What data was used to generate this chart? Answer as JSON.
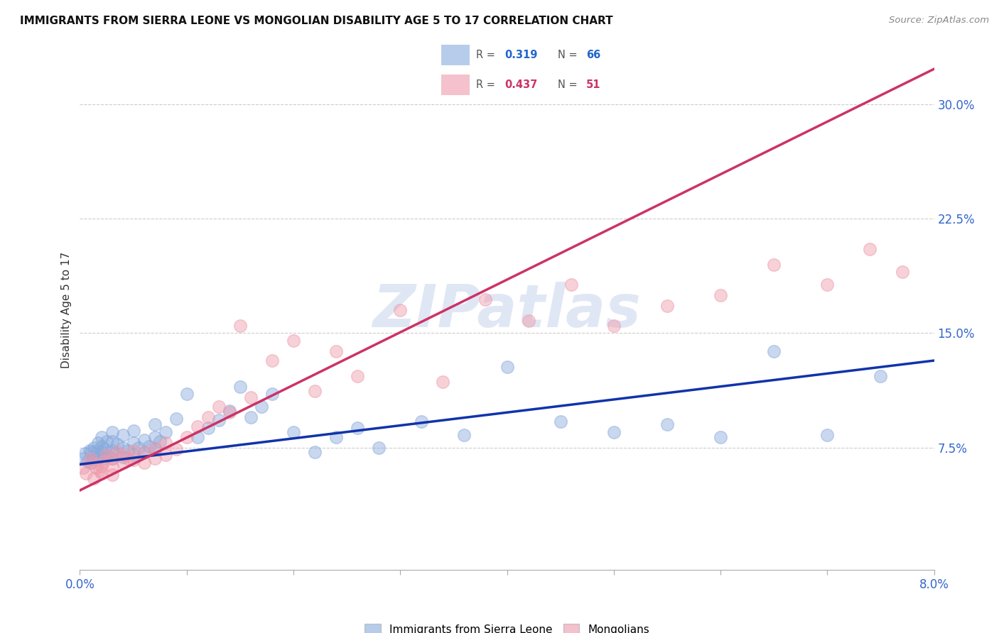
{
  "title": "IMMIGRANTS FROM SIERRA LEONE VS MONGOLIAN DISABILITY AGE 5 TO 17 CORRELATION CHART",
  "source": "Source: ZipAtlas.com",
  "ylabel": "Disability Age 5 to 17",
  "ytick_labels": [
    "7.5%",
    "15.0%",
    "22.5%",
    "30.0%"
  ],
  "ytick_values": [
    0.075,
    0.15,
    0.225,
    0.3
  ],
  "xlim": [
    0.0,
    0.08
  ],
  "ylim": [
    -0.005,
    0.335
  ],
  "color_blue": "#88aadd",
  "color_pink": "#ee99aa",
  "trendline_blue": "#1133aa",
  "trendline_pink": "#cc3366",
  "watermark": "ZIPatlas",
  "blue_slope": 0.85,
  "blue_intercept": 0.064,
  "pink_slope": 3.45,
  "pink_intercept": 0.047,
  "legend_r1_color": "#2266cc",
  "legend_n1_color": "#2266cc",
  "legend_r2_color": "#cc3366",
  "legend_n2_color": "#cc3366",
  "sierra_leone_x": [
    0.0003,
    0.0005,
    0.0007,
    0.0009,
    0.001,
    0.001,
    0.0012,
    0.0013,
    0.0015,
    0.0016,
    0.0017,
    0.0018,
    0.002,
    0.002,
    0.002,
    0.0022,
    0.0023,
    0.0025,
    0.0025,
    0.003,
    0.003,
    0.003,
    0.003,
    0.0033,
    0.0035,
    0.004,
    0.004,
    0.004,
    0.0045,
    0.005,
    0.005,
    0.005,
    0.0055,
    0.006,
    0.006,
    0.0065,
    0.007,
    0.007,
    0.007,
    0.0075,
    0.008,
    0.009,
    0.01,
    0.011,
    0.012,
    0.013,
    0.014,
    0.015,
    0.016,
    0.017,
    0.018,
    0.02,
    0.022,
    0.024,
    0.026,
    0.028,
    0.032,
    0.036,
    0.04,
    0.045,
    0.05,
    0.055,
    0.06,
    0.065,
    0.07,
    0.075
  ],
  "sierra_leone_y": [
    0.068,
    0.071,
    0.066,
    0.073,
    0.065,
    0.072,
    0.069,
    0.075,
    0.067,
    0.073,
    0.078,
    0.069,
    0.072,
    0.076,
    0.082,
    0.068,
    0.074,
    0.07,
    0.079,
    0.068,
    0.073,
    0.079,
    0.085,
    0.071,
    0.077,
    0.069,
    0.075,
    0.083,
    0.073,
    0.07,
    0.078,
    0.086,
    0.075,
    0.072,
    0.08,
    0.076,
    0.074,
    0.082,
    0.09,
    0.079,
    0.085,
    0.094,
    0.11,
    0.082,
    0.088,
    0.093,
    0.099,
    0.115,
    0.095,
    0.102,
    0.11,
    0.085,
    0.072,
    0.082,
    0.088,
    0.075,
    0.092,
    0.083,
    0.128,
    0.092,
    0.085,
    0.09,
    0.082,
    0.138,
    0.083,
    0.122
  ],
  "mongolian_x": [
    0.0003,
    0.0006,
    0.001,
    0.001,
    0.0013,
    0.0015,
    0.0018,
    0.002,
    0.002,
    0.0022,
    0.0025,
    0.003,
    0.003,
    0.003,
    0.0035,
    0.004,
    0.004,
    0.0045,
    0.005,
    0.005,
    0.006,
    0.006,
    0.007,
    0.007,
    0.008,
    0.008,
    0.009,
    0.01,
    0.011,
    0.012,
    0.013,
    0.014,
    0.015,
    0.016,
    0.018,
    0.02,
    0.022,
    0.024,
    0.026,
    0.03,
    0.034,
    0.038,
    0.042,
    0.046,
    0.05,
    0.055,
    0.06,
    0.065,
    0.07,
    0.074,
    0.077
  ],
  "mongolian_y": [
    0.062,
    0.058,
    0.065,
    0.068,
    0.055,
    0.062,
    0.06,
    0.063,
    0.058,
    0.066,
    0.07,
    0.063,
    0.068,
    0.057,
    0.072,
    0.065,
    0.07,
    0.068,
    0.067,
    0.073,
    0.065,
    0.072,
    0.068,
    0.075,
    0.07,
    0.078,
    0.074,
    0.082,
    0.089,
    0.095,
    0.102,
    0.098,
    0.155,
    0.108,
    0.132,
    0.145,
    0.112,
    0.138,
    0.122,
    0.165,
    0.118,
    0.172,
    0.158,
    0.182,
    0.155,
    0.168,
    0.175,
    0.195,
    0.182,
    0.205,
    0.19
  ]
}
